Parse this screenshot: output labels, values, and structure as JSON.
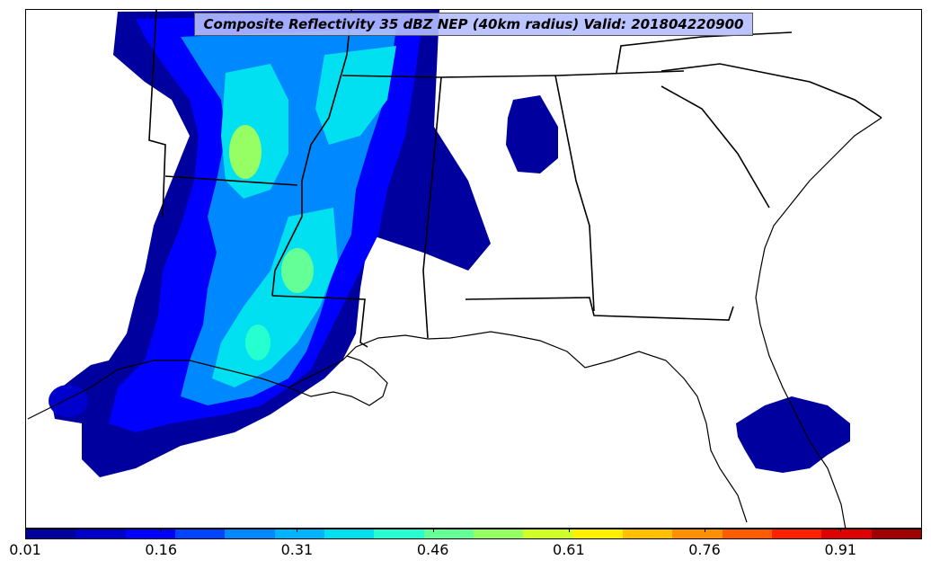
{
  "map": {
    "title": "Composite Reflectivity 35 dBZ NEP (40km radius) Valid: 201804220900",
    "colors": {
      "land_background": "#ffffff",
      "boundaries": "#000000",
      "title_box": "#b4beff"
    }
  },
  "colorbar": {
    "ticks": [
      "0.01",
      "0.16",
      "0.31",
      "0.46",
      "0.61",
      "0.76",
      "0.91"
    ],
    "tick_values": [
      0.01,
      0.16,
      0.31,
      0.46,
      0.61,
      0.76,
      0.91
    ],
    "min": 0.01,
    "max": 1.0,
    "colors": [
      "#00009f",
      "#0000cd",
      "#0000ff",
      "#0044ff",
      "#0088ff",
      "#00b4ff",
      "#00e0f0",
      "#26ffd0",
      "#64ff96",
      "#96ff64",
      "#d0ff28",
      "#fff000",
      "#ffc000",
      "#ff9000",
      "#ff5c00",
      "#ff2000",
      "#e00000",
      "#a00000"
    ]
  }
}
